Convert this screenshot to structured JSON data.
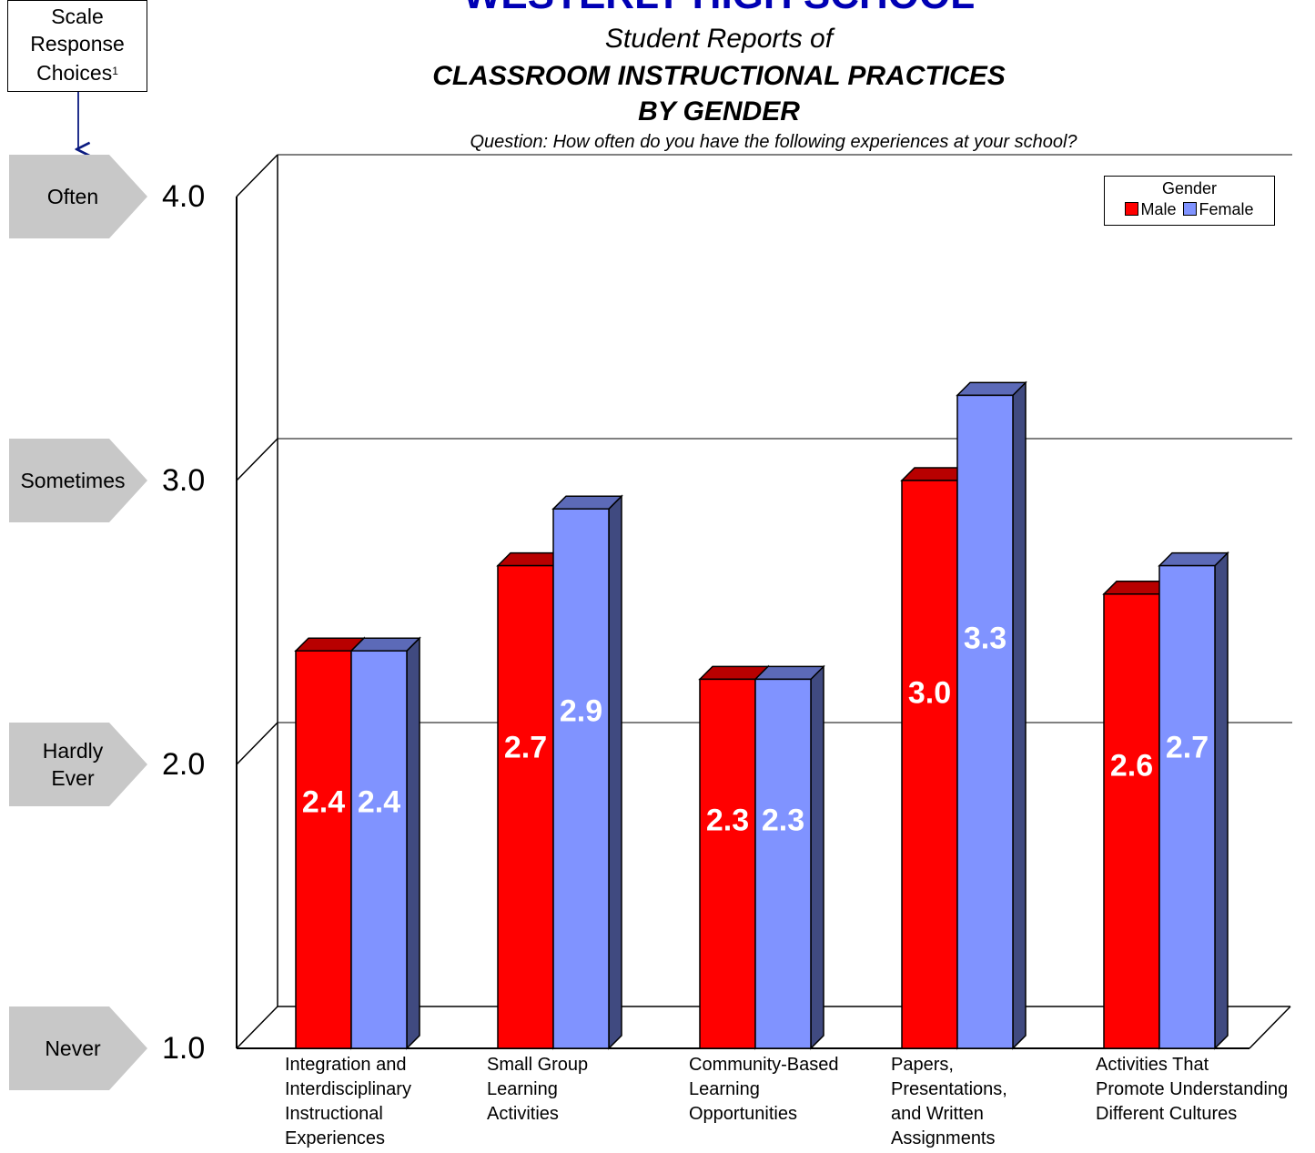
{
  "chart_data": {
    "type": "bar",
    "title": "WESTERLY HIGH SCHOOL",
    "subtitle_lines": [
      "Student Reports of",
      "CLASSROOM INSTRUCTIONAL PRACTICES",
      "BY GENDER"
    ],
    "question": "Question: How often do you have the following experiences at your school?",
    "categories": [
      [
        "Integration and",
        "Interdisciplinary",
        "Instructional",
        "Experiences"
      ],
      [
        "Small Group",
        "Learning",
        "Activities"
      ],
      [
        "Community-Based",
        "Learning",
        "Opportunities"
      ],
      [
        "Papers,",
        "Presentations,",
        "and Written",
        "Assignments"
      ],
      [
        "Activities That",
        "Promote Understanding",
        "Different Cultures"
      ]
    ],
    "series": [
      {
        "name": "Male",
        "color": "#ff0000",
        "values": [
          2.4,
          2.7,
          2.3,
          3.0,
          2.6
        ]
      },
      {
        "name": "Female",
        "color": "#8093ff",
        "values": [
          2.4,
          2.9,
          2.3,
          3.3,
          2.7
        ]
      }
    ],
    "data_labels": [
      [
        "2.4",
        "2.7",
        "2.3",
        "3.0",
        "2.6"
      ],
      [
        "2.4",
        "2.9",
        "2.3",
        "3.3",
        "2.7"
      ]
    ],
    "ylim": [
      1.0,
      4.0
    ],
    "yticks": [
      "1.0",
      "2.0",
      "3.0",
      "4.0"
    ],
    "legend_title": "Gender",
    "legend_position": "top-right",
    "grid": true,
    "scale_box_lines": [
      "Scale",
      "Response",
      "Choices"
    ],
    "scale_box_footnote": "1",
    "response_labels": [
      {
        "value": 4.0,
        "lines": [
          "Often"
        ]
      },
      {
        "value": 3.0,
        "lines": [
          "Sometimes"
        ]
      },
      {
        "value": 2.0,
        "lines": [
          "Hardly",
          "Ever"
        ]
      },
      {
        "value": 1.0,
        "lines": [
          "Never"
        ]
      }
    ]
  }
}
